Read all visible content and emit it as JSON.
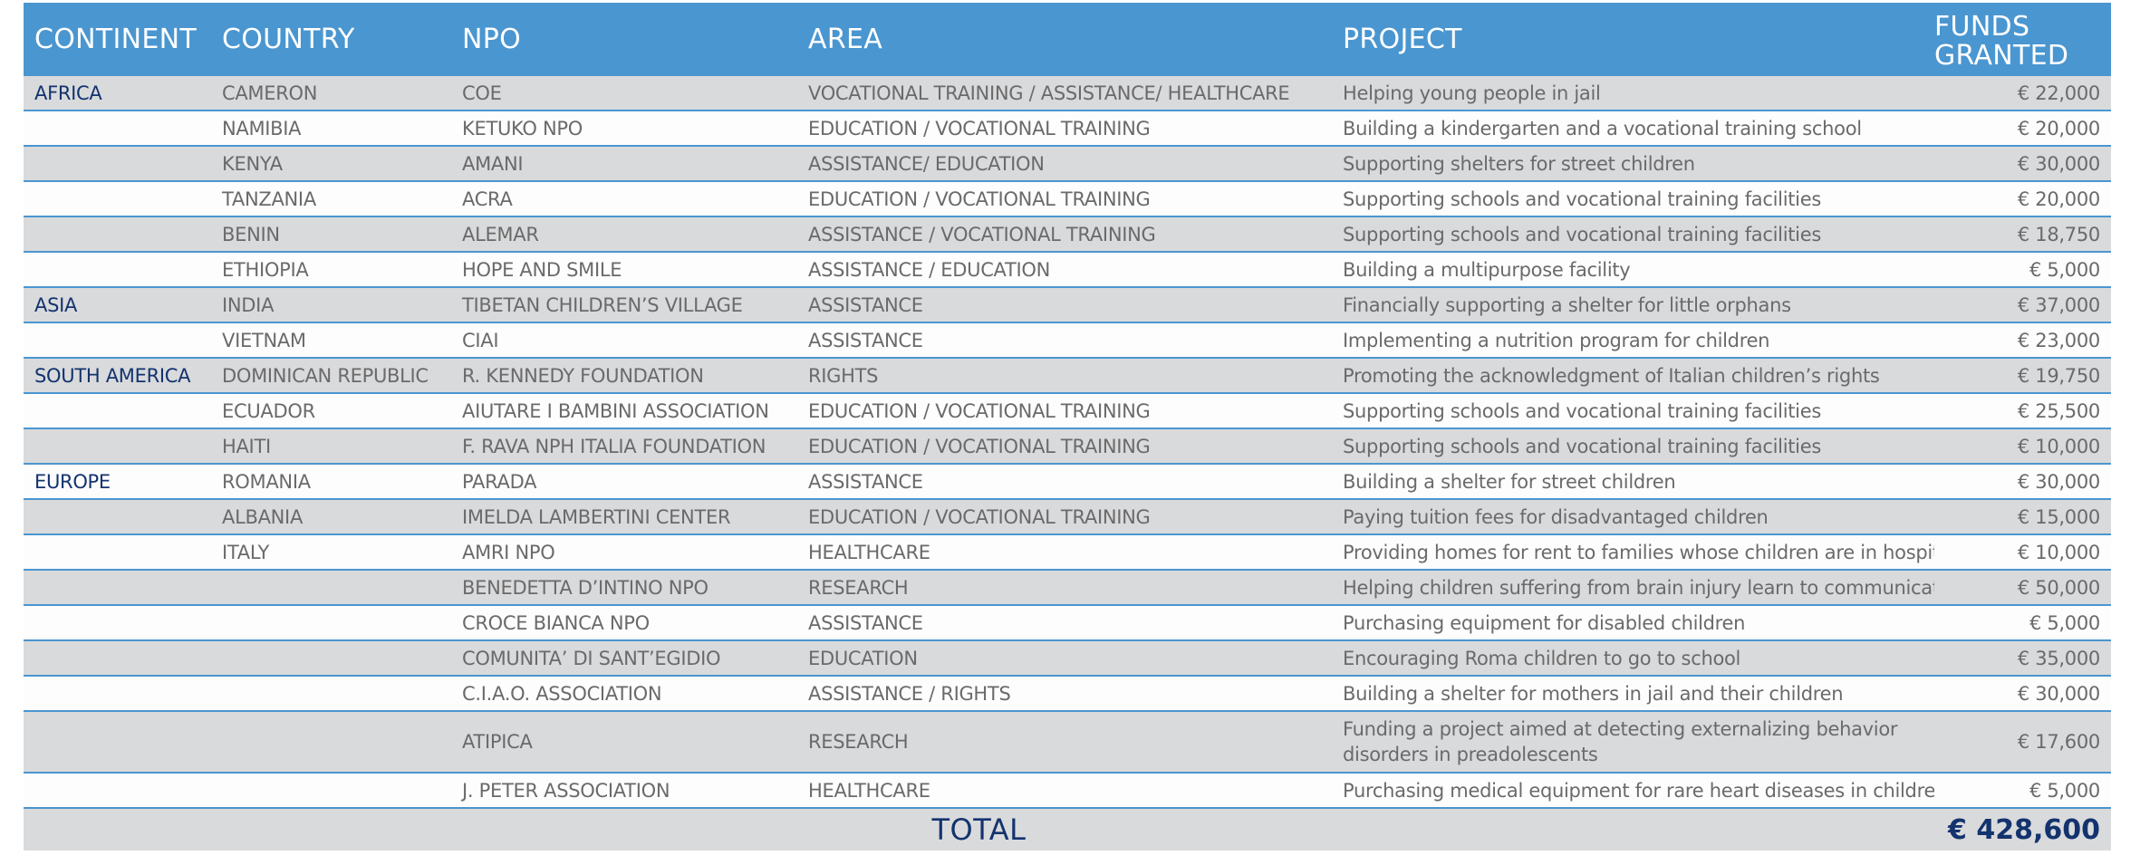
{
  "headers": {
    "continent": "CONTINENT",
    "country": "COUNTRY",
    "npo": "NPO",
    "area": "AREA",
    "project": "PROJECT",
    "funds_line1": "FUNDS",
    "funds_line2": "GRANTED"
  },
  "rows": [
    {
      "continent": "AFRICA",
      "country": "CAMERON",
      "npo": "COE",
      "area": "VOCATIONAL TRAINING / ASSISTANCE/ HEALTHCARE",
      "project": "Helping young people in jail",
      "funds": "€ 22,000"
    },
    {
      "continent": "",
      "country": "NAMIBIA",
      "npo": "KETUKO NPO",
      "area": "EDUCATION / VOCATIONAL TRAINING",
      "project": "Building a kindergarten and a vocational training school",
      "funds": "€ 20,000"
    },
    {
      "continent": "",
      "country": "KENYA",
      "npo": "AMANI",
      "area": "ASSISTANCE/ EDUCATION",
      "project": "Supporting shelters for street children",
      "funds": "€ 30,000"
    },
    {
      "continent": "",
      "country": "TANZANIA",
      "npo": "ACRA",
      "area": "EDUCATION / VOCATIONAL TRAINING",
      "project": "Supporting schools and vocational training facilities",
      "funds": "€ 20,000"
    },
    {
      "continent": "",
      "country": "BENIN",
      "npo": "ALEMAR",
      "area": "ASSISTANCE / VOCATIONAL TRAINING",
      "project": "Supporting schools and vocational training facilities",
      "funds": "€ 18,750"
    },
    {
      "continent": "",
      "country": "ETHIOPIA",
      "npo": "HOPE AND SMILE",
      "area": "ASSISTANCE / EDUCATION",
      "project": "Building a multipurpose facility",
      "funds": "€ 5,000"
    },
    {
      "continent": "ASIA",
      "country": "INDIA",
      "npo": "TIBETAN CHILDREN’S VILLAGE",
      "area": "ASSISTANCE",
      "project": "Financially supporting a shelter for little orphans",
      "funds": "€ 37,000"
    },
    {
      "continent": "",
      "country": "VIETNAM",
      "npo": "CIAI",
      "area": "ASSISTANCE",
      "project": "Implementing a nutrition program for children",
      "funds": "€ 23,000"
    },
    {
      "continent": "SOUTH AMERICA",
      "country": "DOMINICAN REPUBLIC",
      "npo": "R. KENNEDY FOUNDATION",
      "area": "RIGHTS",
      "project": "Promoting the acknowledgment of Italian children’s rights",
      "funds": "€ 19,750"
    },
    {
      "continent": "",
      "country": "ECUADOR",
      "npo": "AIUTARE I BAMBINI ASSOCIATION",
      "area": "EDUCATION / VOCATIONAL TRAINING",
      "project": "Supporting schools and vocational training facilities",
      "funds": "€ 25,500"
    },
    {
      "continent": "",
      "country": "HAITI",
      "npo": "F. RAVA NPH ITALIA FOUNDATION",
      "area": "EDUCATION / VOCATIONAL TRAINING",
      "project": "Supporting schools and vocational training facilities",
      "funds": "€ 10,000"
    },
    {
      "continent": "EUROPE",
      "country": "ROMANIA",
      "npo": "PARADA",
      "area": "ASSISTANCE",
      "project": "Building a shelter for street children",
      "funds": "€ 30,000"
    },
    {
      "continent": "",
      "country": "ALBANIA",
      "npo": "IMELDA LAMBERTINI CENTER",
      "area": "EDUCATION / VOCATIONAL TRAINING",
      "project": "Paying tuition fees for disadvantaged children",
      "funds": "€ 15,000"
    },
    {
      "continent": "",
      "country": "ITALY",
      "npo": "AMRI NPO",
      "area": "HEALTHCARE",
      "project": "Providing homes for rent to families whose children are in hospital",
      "funds": "€ 10,000"
    },
    {
      "continent": "",
      "country": "",
      "npo": "BENEDETTA D’INTINO NPO",
      "area": "RESEARCH",
      "project": "Helping children suffering from brain injury learn to communicate",
      "funds": "€ 50,000"
    },
    {
      "continent": "",
      "country": "",
      "npo": "CROCE BIANCA NPO",
      "area": "ASSISTANCE",
      "project": "Purchasing equipment for disabled children",
      "funds": "€ 5,000"
    },
    {
      "continent": "",
      "country": "",
      "npo": "COMUNITA’ DI SANT’EGIDIO",
      "area": "EDUCATION",
      "project": "Encouraging Roma children to go to school",
      "funds": "€ 35,000"
    },
    {
      "continent": "",
      "country": "",
      "npo": "C.I.A.O. ASSOCIATION",
      "area": "ASSISTANCE / RIGHTS",
      "project": "Building a shelter for mothers in jail and their children",
      "funds": "€ 30,000"
    },
    {
      "continent": "",
      "country": "",
      "npo": "ATIPICA",
      "area": "RESEARCH",
      "project": "Funding a project aimed at detecting externalizing behavior disorders in preadolescents",
      "funds": "€ 17,600"
    },
    {
      "continent": "",
      "country": "",
      "npo": "J. PETER ASSOCIATION",
      "area": "HEALTHCARE",
      "project": "Purchasing medical equipment for rare heart diseases in children",
      "funds": "€ 5,000"
    }
  ],
  "footer": {
    "total_label": "TOTAL",
    "total_value": "€ 428,600"
  }
}
